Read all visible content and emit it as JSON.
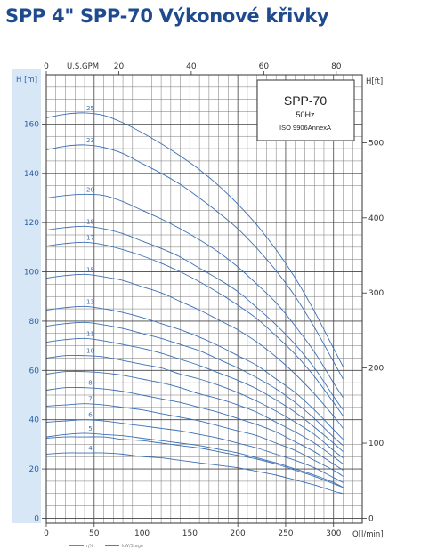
{
  "title": "SPP 4\" SPP-70 Výkonové křivky",
  "chart_data": {
    "type": "line",
    "info_box": {
      "model": "SPP-70",
      "frequency": "50Hz",
      "standard": "ISO 9906AnnexA"
    },
    "x_bottom": {
      "label": "Q[l/min]",
      "ticks": [
        "0",
        "50",
        "100",
        "150",
        "200",
        "250",
        "300"
      ],
      "lim": [
        0,
        330
      ]
    },
    "x_top": {
      "label": "U.S.GPM",
      "ticks": [
        "0",
        "20",
        "40",
        "60",
        "80"
      ],
      "lim": [
        0,
        87.17
      ]
    },
    "y_left": {
      "label": "H [m]",
      "ticks": [
        "0",
        "20",
        "40",
        "60",
        "80",
        "100",
        "120",
        "140",
        "160"
      ],
      "lim": [
        -2,
        180
      ]
    },
    "y_right": {
      "label": "H[ft]",
      "ticks": [
        "0",
        "100",
        "200",
        "300",
        "400",
        "500"
      ],
      "lim": [
        -6.56,
        590.5
      ]
    },
    "grid": true,
    "x": [
      0,
      20,
      40,
      60,
      80,
      100,
      120,
      140,
      160,
      180,
      200,
      220,
      240,
      260,
      280,
      300,
      310
    ],
    "series": [
      {
        "name": "25",
        "values": [
          162.5,
          164,
          164.5,
          163.5,
          160.5,
          156.5,
          152,
          147,
          141.5,
          135,
          127.5,
          119,
          109,
          97.5,
          84,
          69,
          61.5
        ]
      },
      {
        "name": "23",
        "values": [
          149.5,
          151,
          151.5,
          150.5,
          148,
          144,
          140,
          135.5,
          130,
          124,
          117.5,
          109.5,
          100.5,
          90,
          77.5,
          63.5,
          56.5
        ]
      },
      {
        "name": "20",
        "values": [
          130,
          131,
          131.5,
          131,
          128.5,
          125,
          121.5,
          117.5,
          113,
          108,
          102,
          95,
          87.5,
          78,
          67.5,
          55,
          49
        ]
      },
      {
        "name": "18",
        "values": [
          117,
          118,
          118.5,
          117.5,
          115.5,
          112.5,
          109.5,
          106,
          101.5,
          97,
          92,
          85.5,
          78.5,
          70.5,
          61,
          49.5,
          44
        ]
      },
      {
        "name": "17",
        "values": [
          110.5,
          111.5,
          112,
          111,
          109,
          106.5,
          103.5,
          100,
          96,
          91.5,
          86.5,
          81,
          74,
          66.5,
          57.5,
          47,
          41.5
        ]
      },
      {
        "name": "15",
        "values": [
          97.5,
          98.5,
          99,
          98,
          96.5,
          94,
          91.5,
          88,
          84.5,
          80.5,
          76.5,
          71.5,
          65.5,
          58.5,
          50.5,
          41.5,
          36.5
        ]
      },
      {
        "name": "13",
        "values": [
          84.5,
          85.5,
          86,
          85,
          83.5,
          81.5,
          79,
          76.5,
          73.5,
          70,
          66,
          62,
          56.5,
          51,
          44,
          36,
          32
        ]
      },
      {
        "name": "",
        "values": [
          78,
          79,
          79.5,
          78.5,
          77,
          75,
          73,
          70.5,
          68,
          64.5,
          61,
          57,
          52.5,
          47,
          40.5,
          33,
          29.5
        ]
      },
      {
        "name": "11",
        "values": [
          71.5,
          72.5,
          73,
          72,
          70.5,
          69,
          67,
          64.5,
          62,
          59,
          56,
          52.5,
          48,
          43,
          37,
          30.5,
          27
        ]
      },
      {
        "name": "10",
        "values": [
          65,
          66,
          66,
          65.5,
          64,
          62.5,
          61,
          58.5,
          56.5,
          54,
          51,
          47.5,
          43.5,
          39,
          34,
          27.5,
          24.5
        ]
      },
      {
        "name": "",
        "values": [
          58.5,
          59.5,
          59.5,
          59,
          58,
          56.5,
          55,
          53,
          50.5,
          48.5,
          46,
          43,
          39,
          35,
          30.5,
          25,
          22
        ]
      },
      {
        "name": "8",
        "values": [
          52,
          53,
          53,
          52.5,
          51.5,
          50,
          48.5,
          47,
          45,
          43,
          40.5,
          38,
          35,
          31,
          27,
          22,
          19.5
        ]
      },
      {
        "name": "7",
        "values": [
          45.5,
          46,
          46.5,
          46,
          45,
          44,
          42.5,
          41,
          39.5,
          37.5,
          35.5,
          33.5,
          30.5,
          27.5,
          23.5,
          19.5,
          17
        ]
      },
      {
        "name": "6",
        "values": [
          39,
          39.5,
          40,
          39.5,
          38.5,
          37.5,
          36.5,
          35.5,
          34,
          32.5,
          30.5,
          28.5,
          26,
          23.5,
          20.5,
          16.5,
          14.5
        ]
      },
      {
        "name": "",
        "values": [
          32.5,
          33,
          33,
          33,
          32,
          31.5,
          30.5,
          29.5,
          28.5,
          27,
          25.5,
          24,
          22,
          19.5,
          17,
          14,
          12.5
        ]
      },
      {
        "name": "5",
        "values": [
          33,
          34,
          34.5,
          34,
          33.5,
          32.5,
          31.5,
          30.5,
          29.5,
          28,
          26.5,
          24.5,
          22.5,
          20,
          17.5,
          14.5,
          12.5
        ]
      },
      {
        "name": "4",
        "values": [
          26,
          26.5,
          26.5,
          26.5,
          26,
          25,
          24.5,
          23.5,
          22.5,
          21.5,
          20.5,
          19,
          17.5,
          15.5,
          13.5,
          11,
          10
        ]
      }
    ],
    "legend": [
      {
        "label": "η%",
        "color": "#c0703a"
      },
      {
        "label": "kW/Stage",
        "color": "#4a9a3c"
      }
    ]
  },
  "colors": {
    "title": "#1f4b8e",
    "curve": "#3a6fb5",
    "grid": "#333333",
    "left_axis_band": "#d8e7f5"
  }
}
